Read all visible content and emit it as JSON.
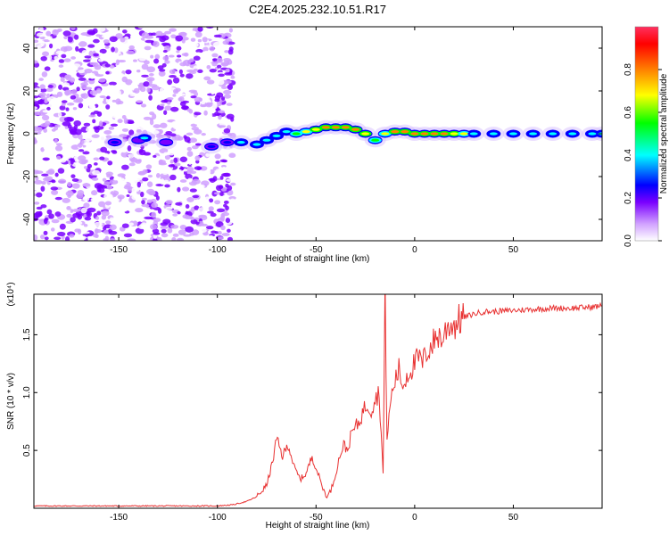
{
  "title": "C2E4.2025.232.10.51.R17",
  "chart_data": [
    {
      "type": "heatmap",
      "name": "spectrogram",
      "xlabel": "Height of straight line (km)",
      "ylabel": "Frequency (Hz)",
      "xlim": [
        -193,
        95
      ],
      "ylim": [
        -50,
        50
      ],
      "x_ticks": [
        -150,
        -100,
        -50,
        0,
        50
      ],
      "x_tick_labels": [
        "-150",
        "-100",
        "-50",
        "0",
        "50"
      ],
      "y_ticks": [
        -40,
        -20,
        0,
        20,
        40
      ],
      "y_tick_labels": [
        "-40",
        "-20",
        "0",
        "20",
        "40"
      ],
      "colorbar": {
        "label": "Normalized spectral amplitude",
        "range": [
          0,
          1
        ],
        "ticks": [
          0,
          0.2,
          0.4,
          0.6,
          0.8
        ],
        "tick_labels": [
          "0.0",
          "0.2",
          "0.4",
          "0.6",
          "0.8"
        ],
        "colors": [
          "#ffffff",
          "#d0a0ff",
          "#7a00ff",
          "#0000ff",
          "#00ffff",
          "#00ff00",
          "#ffff00",
          "#ff8000",
          "#ff0000"
        ]
      },
      "noise_region_x": [
        -193,
        -92
      ],
      "ridge": [
        {
          "x": -152,
          "y": -4,
          "a": 0.35
        },
        {
          "x": -140,
          "y": -3,
          "a": 0.3
        },
        {
          "x": -137,
          "y": -2,
          "a": 0.45
        },
        {
          "x": -126,
          "y": -4,
          "a": 0.3
        },
        {
          "x": -103,
          "y": -6,
          "a": 0.35
        },
        {
          "x": -95,
          "y": -4,
          "a": 0.4
        },
        {
          "x": -88,
          "y": -4,
          "a": 0.45
        },
        {
          "x": -80,
          "y": -5,
          "a": 0.5
        },
        {
          "x": -75,
          "y": -3,
          "a": 0.55
        },
        {
          "x": -70,
          "y": -1,
          "a": 0.5
        },
        {
          "x": -65,
          "y": 1,
          "a": 0.55
        },
        {
          "x": -60,
          "y": 0,
          "a": 0.6
        },
        {
          "x": -55,
          "y": 1,
          "a": 0.7
        },
        {
          "x": -50,
          "y": 2,
          "a": 0.8
        },
        {
          "x": -45,
          "y": 3,
          "a": 0.85
        },
        {
          "x": -40,
          "y": 3,
          "a": 0.9
        },
        {
          "x": -35,
          "y": 3,
          "a": 0.85
        },
        {
          "x": -30,
          "y": 2,
          "a": 0.85
        },
        {
          "x": -25,
          "y": 0,
          "a": 0.8
        },
        {
          "x": -20,
          "y": -3,
          "a": 0.6
        },
        {
          "x": -15,
          "y": 0,
          "a": 0.75
        },
        {
          "x": -10,
          "y": 1,
          "a": 0.85
        },
        {
          "x": -5,
          "y": 1,
          "a": 0.85
        },
        {
          "x": 0,
          "y": 0,
          "a": 0.9
        },
        {
          "x": 5,
          "y": 0,
          "a": 0.9
        },
        {
          "x": 10,
          "y": 0,
          "a": 0.9
        },
        {
          "x": 15,
          "y": 0,
          "a": 0.85
        },
        {
          "x": 20,
          "y": 0,
          "a": 0.8
        },
        {
          "x": 25,
          "y": 0,
          "a": 0.7
        },
        {
          "x": 30,
          "y": 0,
          "a": 0.55
        },
        {
          "x": 40,
          "y": 0,
          "a": 0.5
        },
        {
          "x": 50,
          "y": 0,
          "a": 0.5
        },
        {
          "x": 60,
          "y": 0,
          "a": 0.5
        },
        {
          "x": 70,
          "y": 0,
          "a": 0.5
        },
        {
          "x": 80,
          "y": 0,
          "a": 0.5
        },
        {
          "x": 90,
          "y": 0,
          "a": 0.5
        },
        {
          "x": 95,
          "y": 0,
          "a": 0.45
        }
      ]
    },
    {
      "type": "line",
      "name": "snr",
      "xlabel": "Height of straight line (km)",
      "ylabel": "SNR (10 * v/v)",
      "y_multiplier_label": "(x10⁴)",
      "xlim": [
        -193,
        95
      ],
      "ylim": [
        0,
        1.85
      ],
      "x_ticks": [
        -150,
        -100,
        -50,
        0,
        50
      ],
      "x_tick_labels": [
        "-150",
        "-100",
        "-50",
        "0",
        "50"
      ],
      "y_ticks": [
        0.5,
        1.0,
        1.5
      ],
      "y_tick_labels": [
        "0.5",
        "1.0",
        "1.5"
      ],
      "series": [
        {
          "name": "SNR",
          "color": "#e83030",
          "points": [
            [
              -193,
              0.02
            ],
            [
              -150,
              0.02
            ],
            [
              -120,
              0.02
            ],
            [
              -100,
              0.02
            ],
            [
              -92,
              0.03
            ],
            [
              -85,
              0.06
            ],
            [
              -80,
              0.1
            ],
            [
              -75,
              0.2
            ],
            [
              -72,
              0.4
            ],
            [
              -70,
              0.6
            ],
            [
              -67,
              0.45
            ],
            [
              -64,
              0.55
            ],
            [
              -61,
              0.35
            ],
            [
              -58,
              0.25
            ],
            [
              -55,
              0.3
            ],
            [
              -52,
              0.45
            ],
            [
              -50,
              0.35
            ],
            [
              -48,
              0.25
            ],
            [
              -46,
              0.15
            ],
            [
              -44,
              0.1
            ],
            [
              -42,
              0.18
            ],
            [
              -40,
              0.3
            ],
            [
              -38,
              0.45
            ],
            [
              -36,
              0.55
            ],
            [
              -34,
              0.5
            ],
            [
              -32,
              0.65
            ],
            [
              -30,
              0.7
            ],
            [
              -28,
              0.75
            ],
            [
              -26,
              0.85
            ],
            [
              -24,
              0.9
            ],
            [
              -22,
              0.85
            ],
            [
              -20,
              0.95
            ],
            [
              -18,
              1.0
            ],
            [
              -16,
              0.3
            ],
            [
              -15,
              1.85
            ],
            [
              -14,
              0.6
            ],
            [
              -12,
              0.95
            ],
            [
              -10,
              1.1
            ],
            [
              -8,
              1.2
            ],
            [
              -6,
              1.05
            ],
            [
              -4,
              1.15
            ],
            [
              -2,
              1.2
            ],
            [
              0,
              1.25
            ],
            [
              2,
              1.3
            ],
            [
              4,
              1.25
            ],
            [
              6,
              1.35
            ],
            [
              8,
              1.4
            ],
            [
              10,
              1.45
            ],
            [
              12,
              1.5
            ],
            [
              14,
              1.45
            ],
            [
              16,
              1.55
            ],
            [
              18,
              1.6
            ],
            [
              20,
              1.58
            ],
            [
              22,
              1.62
            ],
            [
              25,
              1.65
            ],
            [
              30,
              1.68
            ],
            [
              35,
              1.7
            ],
            [
              40,
              1.7
            ],
            [
              50,
              1.71
            ],
            [
              60,
              1.72
            ],
            [
              70,
              1.73
            ],
            [
              80,
              1.73
            ],
            [
              90,
              1.74
            ],
            [
              95,
              1.75
            ]
          ]
        }
      ]
    }
  ]
}
